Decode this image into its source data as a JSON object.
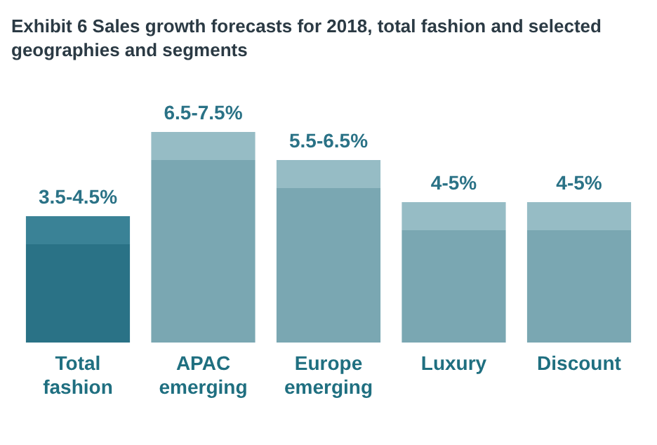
{
  "chart_data": {
    "type": "bar",
    "title": "Exhibit 6 Sales growth forecasts for 2018, total fashion and selected geographies and segments",
    "categories": [
      "Total fashion",
      "APAC emerging",
      "Europe emerging",
      "Luxury",
      "Discount"
    ],
    "stacked": true,
    "series": [
      {
        "colors": [
          "#2a7286",
          "#7aa7b2",
          "#7aa7b2",
          "#7aa7b2",
          "#7aa7b2"
        ],
        "values": [
          3.5,
          6.5,
          5.5,
          4,
          4
        ],
        "value_labels": [
          "3.5-4.5%",
          "6.5-7.5%",
          "5.5-6.5%",
          "4-5%",
          "4-5%"
        ]
      },
      {
        "colors": [
          "#3a8296",
          "#96bcc5",
          "#96bcc5",
          "#96bcc5",
          "#96bcc5"
        ],
        "values": [
          1,
          1,
          1,
          1,
          1
        ]
      }
    ]
  }
}
